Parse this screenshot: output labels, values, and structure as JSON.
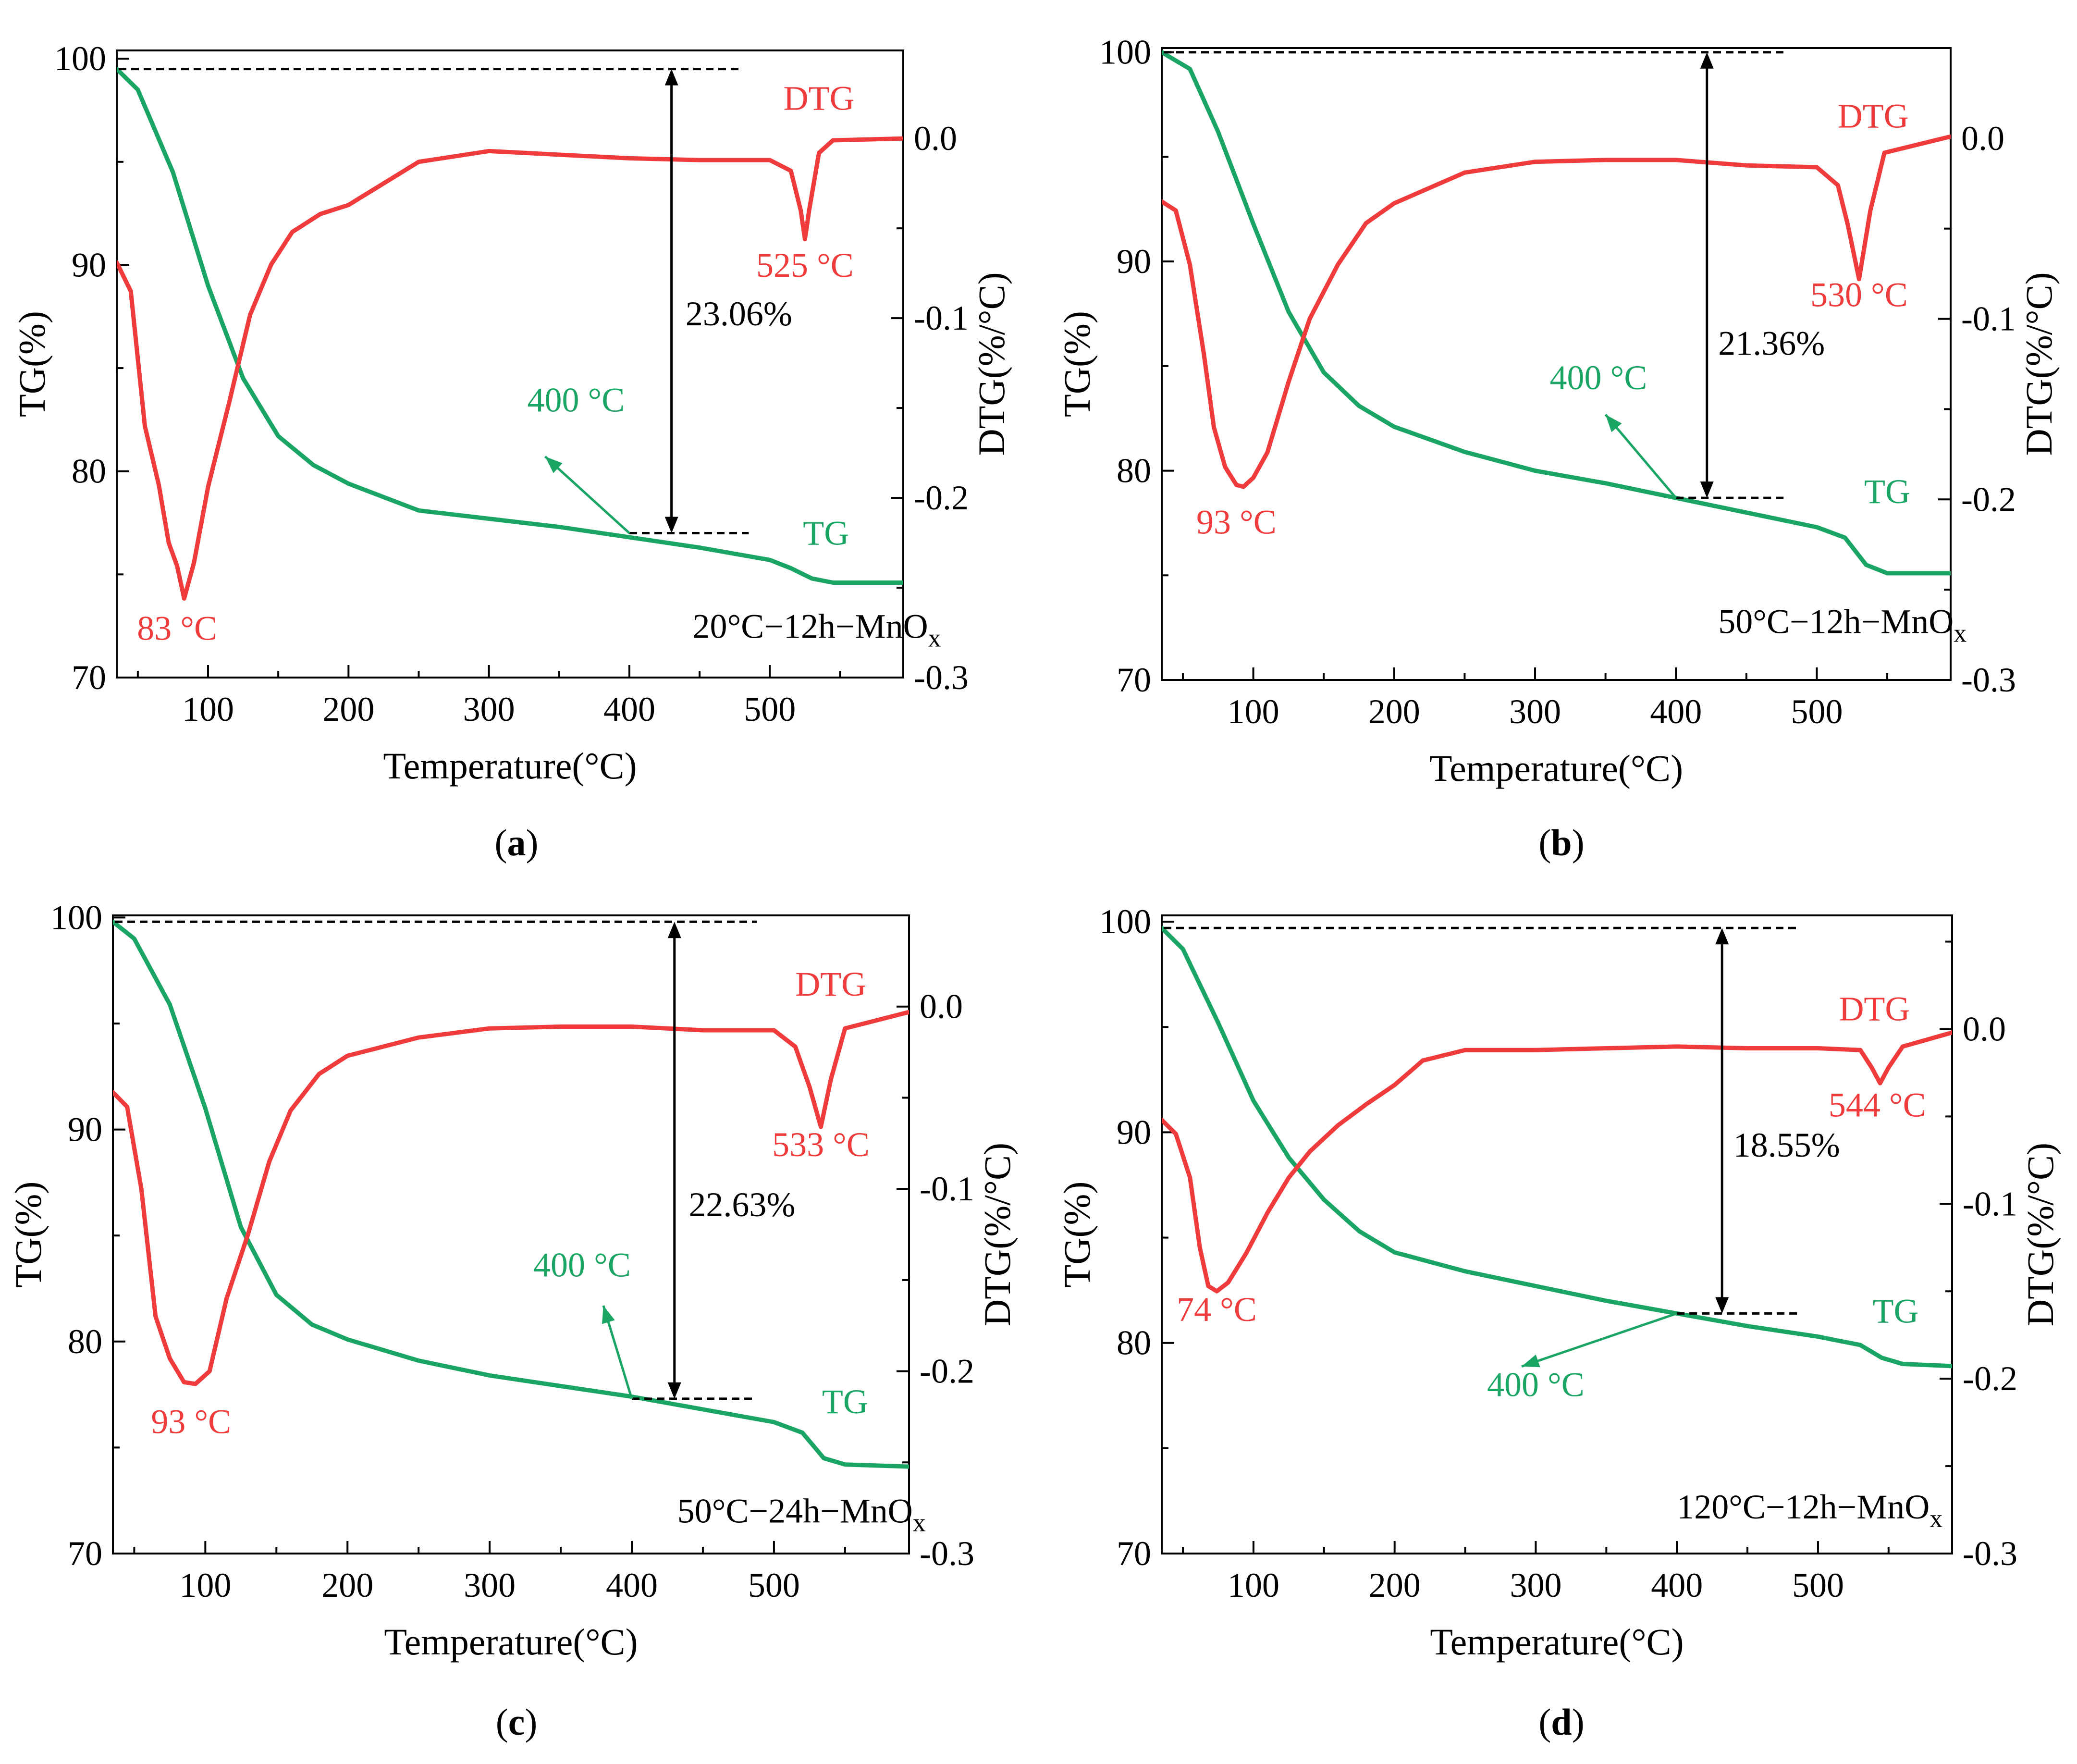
{
  "chart_data": [
    {
      "type": "line",
      "caption": "(a)",
      "sample_label": "20°C−12h−MnO",
      "sample_subscript": "x",
      "xlabel": "Temperature(°C)",
      "ylabel_left": "TG(%)",
      "ylabel_right": "DTG(%/°C)",
      "xlim": [
        35,
        595
      ],
      "ylim_left": [
        70,
        100.4
      ],
      "ylim_right": [
        -0.3,
        0.049
      ],
      "xticks": [
        100,
        200,
        300,
        400,
        500
      ],
      "xtick_labels": [
        "100",
        "200",
        "300",
        "400",
        "500"
      ],
      "yticks_left": [
        70,
        80,
        90,
        100
      ],
      "ytick_labels_left": [
        "70",
        "80",
        "90",
        "100"
      ],
      "yticks_right": [
        -0.3,
        -0.2,
        -0.1,
        0.0
      ],
      "ytick_labels_right": [
        "-0.3",
        "-0.2",
        "-0.1",
        "0.0"
      ],
      "series": [
        {
          "name": "TG",
          "axis": "left",
          "color": "#1aa564",
          "x": [
            35,
            50,
            75,
            100,
            125,
            150,
            175,
            200,
            250,
            300,
            350,
            400,
            450,
            500,
            515,
            530,
            545,
            595
          ],
          "y": [
            99.5,
            98.5,
            94.5,
            89.0,
            84.5,
            81.7,
            80.3,
            79.4,
            78.1,
            77.7,
            77.3,
            76.8,
            76.3,
            75.7,
            75.3,
            74.8,
            74.6,
            74.6
          ]
        },
        {
          "name": "DTG",
          "axis": "right",
          "color": "#ef3b3b",
          "x": [
            35,
            45,
            55,
            65,
            72,
            78,
            83,
            90,
            100,
            115,
            130,
            145,
            160,
            180,
            200,
            250,
            300,
            400,
            450,
            500,
            515,
            522,
            525,
            528,
            535,
            545,
            595
          ],
          "y": [
            -0.069,
            -0.085,
            -0.16,
            -0.193,
            -0.225,
            -0.238,
            -0.256,
            -0.236,
            -0.194,
            -0.147,
            -0.098,
            -0.07,
            -0.052,
            -0.042,
            -0.037,
            -0.013,
            -0.007,
            -0.011,
            -0.012,
            -0.012,
            -0.018,
            -0.04,
            -0.056,
            -0.04,
            -0.008,
            -0.001,
            0.0
          ]
        }
      ],
      "peaks": [
        {
          "label": "83 °C",
          "series": "DTG",
          "x": 83
        },
        {
          "label": "525 °C",
          "series": "DTG",
          "x": 525
        }
      ],
      "mass_loss": {
        "label": "23.06%",
        "x": 430,
        "tg_top": 99.5,
        "tg_bottom": 77.0
      },
      "point_400": {
        "label": "400 °C",
        "x": 400,
        "tg": 77.0
      },
      "series_labels": {
        "dtg": "DTG",
        "tg": "TG"
      }
    },
    {
      "type": "line",
      "caption": "(b)",
      "sample_label": "50°C−12h−MnO",
      "sample_subscript": "x",
      "xlabel": "Temperature(°C)",
      "ylabel_left": "TG(%)",
      "ylabel_right": "DTG(%/°C)",
      "xlim": [
        35,
        595
      ],
      "ylim_left": [
        70,
        100.2
      ],
      "ylim_right": [
        -0.3,
        0.05
      ],
      "xticks": [
        100,
        200,
        300,
        400,
        500
      ],
      "xtick_labels": [
        "100",
        "200",
        "300",
        "400",
        "500"
      ],
      "yticks_left": [
        70,
        80,
        90,
        100
      ],
      "ytick_labels_left": [
        "70",
        "80",
        "90",
        "100"
      ],
      "yticks_right": [
        -0.3,
        -0.2,
        -0.1,
        0.0
      ],
      "ytick_labels_right": [
        "-0.3",
        "-0.2",
        "-0.1",
        "0.0"
      ],
      "series": [
        {
          "name": "TG",
          "axis": "left",
          "color": "#1aa564",
          "x": [
            35,
            55,
            75,
            100,
            125,
            150,
            175,
            200,
            250,
            300,
            350,
            400,
            450,
            500,
            520,
            535,
            550,
            595
          ],
          "y": [
            100.0,
            99.2,
            96.2,
            91.8,
            87.6,
            84.7,
            83.1,
            82.1,
            80.9,
            80.0,
            79.4,
            78.7,
            78.0,
            77.3,
            76.8,
            75.5,
            75.1,
            75.1
          ]
        },
        {
          "name": "DTG",
          "axis": "right",
          "color": "#ef3b3b",
          "x": [
            35,
            45,
            55,
            65,
            72,
            80,
            88,
            93,
            100,
            110,
            125,
            140,
            160,
            180,
            200,
            250,
            300,
            350,
            400,
            450,
            500,
            515,
            522,
            530,
            538,
            548,
            595
          ],
          "y": [
            -0.035,
            -0.04,
            -0.07,
            -0.12,
            -0.16,
            -0.182,
            -0.192,
            -0.193,
            -0.188,
            -0.174,
            -0.135,
            -0.1,
            -0.07,
            -0.047,
            -0.036,
            -0.019,
            -0.013,
            -0.012,
            -0.012,
            -0.015,
            -0.016,
            -0.026,
            -0.048,
            -0.078,
            -0.04,
            -0.008,
            0.001
          ]
        }
      ],
      "peaks": [
        {
          "label": "93 °C",
          "series": "DTG",
          "x": 93
        },
        {
          "label": "530 °C",
          "series": "DTG",
          "x": 530
        }
      ],
      "mass_loss": {
        "label": "21.36%",
        "x": 422,
        "tg_top": 100.0,
        "tg_bottom": 78.7
      },
      "point_400": {
        "label": "400 °C",
        "x": 400,
        "tg": 78.7
      },
      "series_labels": {
        "dtg": "DTG",
        "tg": "TG"
      }
    },
    {
      "type": "line",
      "caption": "(c)",
      "sample_label": "50°C−24h−MnO",
      "sample_subscript": "x",
      "xlabel": "Temperature(°C)",
      "ylabel_left": "TG(%)",
      "ylabel_right": "DTG(%/°C)",
      "xlim": [
        35,
        595
      ],
      "ylim_left": [
        70,
        100.1
      ],
      "ylim_right": [
        -0.3,
        0.05
      ],
      "xticks": [
        100,
        200,
        300,
        400,
        500
      ],
      "xtick_labels": [
        "100",
        "200",
        "300",
        "400",
        "500"
      ],
      "yticks_left": [
        70,
        80,
        90,
        100
      ],
      "ytick_labels_left": [
        "70",
        "80",
        "90",
        "100"
      ],
      "yticks_right": [
        -0.3,
        -0.2,
        -0.1,
        0.0
      ],
      "ytick_labels_right": [
        "-0.3",
        "-0.2",
        "-0.1",
        "0.0"
      ],
      "series": [
        {
          "name": "TG",
          "axis": "left",
          "color": "#1aa564",
          "x": [
            35,
            50,
            75,
            100,
            125,
            150,
            175,
            200,
            250,
            300,
            350,
            400,
            450,
            500,
            520,
            535,
            550,
            595
          ],
          "y": [
            99.8,
            99.0,
            95.9,
            91.0,
            85.4,
            82.2,
            80.8,
            80.1,
            79.1,
            78.4,
            77.9,
            77.4,
            76.8,
            76.2,
            75.7,
            74.5,
            74.2,
            74.1
          ]
        },
        {
          "name": "DTG",
          "axis": "right",
          "color": "#ef3b3b",
          "x": [
            35,
            45,
            55,
            65,
            75,
            85,
            93,
            103,
            115,
            130,
            145,
            160,
            180,
            200,
            250,
            300,
            350,
            400,
            450,
            500,
            515,
            525,
            533,
            540,
            550,
            595
          ],
          "y": [
            -0.047,
            -0.055,
            -0.1,
            -0.17,
            -0.193,
            -0.206,
            -0.207,
            -0.2,
            -0.16,
            -0.125,
            -0.085,
            -0.057,
            -0.037,
            -0.027,
            -0.017,
            -0.012,
            -0.011,
            -0.011,
            -0.013,
            -0.013,
            -0.022,
            -0.044,
            -0.066,
            -0.04,
            -0.012,
            -0.003
          ]
        }
      ],
      "peaks": [
        {
          "label": "93 °C",
          "series": "DTG",
          "x": 93
        },
        {
          "label": "533 °C",
          "series": "DTG",
          "x": 533
        }
      ],
      "mass_loss": {
        "label": "22.63%",
        "x": 430,
        "tg_top": 99.8,
        "tg_bottom": 77.3
      },
      "point_400": {
        "label": "400 °C",
        "x": 400,
        "tg": 77.3
      },
      "series_labels": {
        "dtg": "DTG",
        "tg": "TG"
      }
    },
    {
      "type": "line",
      "caption": "(d)",
      "sample_label": "120°C−12h−MnO",
      "sample_subscript": "x",
      "xlabel": "Temperature(°C)",
      "ylabel_left": "TG(%)",
      "ylabel_right": "DTG(%/°C)",
      "xlim": [
        35,
        595
      ],
      "ylim_left": [
        70,
        100.3
      ],
      "ylim_right": [
        -0.3,
        0.065
      ],
      "xticks": [
        100,
        200,
        300,
        400,
        500
      ],
      "xtick_labels": [
        "100",
        "200",
        "300",
        "400",
        "500"
      ],
      "yticks_left": [
        70,
        80,
        90,
        100
      ],
      "ytick_labels_left": [
        "70",
        "80",
        "90",
        "100"
      ],
      "yticks_right": [
        -0.3,
        -0.2,
        -0.1,
        0.0
      ],
      "ytick_labels_right": [
        "-0.3",
        "-0.2",
        "-0.1",
        "0.0"
      ],
      "series": [
        {
          "name": "TG",
          "axis": "left",
          "color": "#1aa564",
          "x": [
            35,
            50,
            75,
            100,
            125,
            150,
            175,
            200,
            250,
            300,
            350,
            400,
            450,
            500,
            530,
            545,
            560,
            595
          ],
          "y": [
            99.7,
            98.7,
            95.2,
            91.5,
            88.8,
            86.8,
            85.3,
            84.3,
            83.4,
            82.7,
            82.0,
            81.4,
            80.8,
            80.3,
            79.9,
            79.3,
            79.0,
            78.9
          ]
        },
        {
          "name": "DTG",
          "axis": "right",
          "color": "#ef3b3b",
          "x": [
            35,
            45,
            55,
            62,
            68,
            74,
            82,
            95,
            110,
            125,
            140,
            160,
            180,
            200,
            220,
            250,
            300,
            350,
            400,
            450,
            500,
            530,
            538,
            544,
            550,
            560,
            595
          ],
          "y": [
            -0.052,
            -0.06,
            -0.085,
            -0.125,
            -0.147,
            -0.15,
            -0.145,
            -0.128,
            -0.105,
            -0.085,
            -0.07,
            -0.055,
            -0.043,
            -0.032,
            -0.018,
            -0.012,
            -0.012,
            -0.011,
            -0.01,
            -0.011,
            -0.011,
            -0.012,
            -0.022,
            -0.031,
            -0.022,
            -0.01,
            -0.002
          ]
        }
      ],
      "peaks": [
        {
          "label": "74 °C",
          "series": "DTG",
          "x": 74
        },
        {
          "label": "544 °C",
          "series": "DTG",
          "x": 544
        }
      ],
      "mass_loss": {
        "label": "18.55%",
        "x": 432,
        "tg_top": 99.7,
        "tg_bottom": 81.4
      },
      "point_400": {
        "label": "400 °C",
        "x": 400,
        "tg": 81.4
      },
      "series_labels": {
        "dtg": "DTG",
        "tg": "TG"
      }
    }
  ],
  "colors": {
    "tg": "#1aa564",
    "dtg": "#ef3b3b",
    "axis": "#000000"
  }
}
